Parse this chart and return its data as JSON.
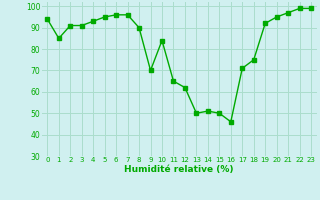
{
  "x": [
    0,
    1,
    2,
    3,
    4,
    5,
    6,
    7,
    8,
    9,
    10,
    11,
    12,
    13,
    14,
    15,
    16,
    17,
    18,
    19,
    20,
    21,
    22,
    23
  ],
  "y": [
    94,
    85,
    91,
    91,
    93,
    95,
    96,
    96,
    90,
    70,
    84,
    65,
    62,
    50,
    51,
    50,
    46,
    71,
    75,
    92,
    95,
    97,
    99,
    99
  ],
  "line_color": "#00aa00",
  "marker_color": "#00aa00",
  "bg_color": "#d0f0f0",
  "grid_color": "#aaddcc",
  "xlabel": "Humidité relative (%)",
  "xlabel_color": "#00aa00",
  "ylim": [
    30,
    102
  ],
  "yticks": [
    30,
    40,
    50,
    60,
    70,
    80,
    90,
    100
  ],
  "xlim": [
    -0.5,
    23.5
  ],
  "xticks": [
    0,
    1,
    2,
    3,
    4,
    5,
    6,
    7,
    8,
    9,
    10,
    11,
    12,
    13,
    14,
    15,
    16,
    17,
    18,
    19,
    20,
    21,
    22,
    23
  ]
}
